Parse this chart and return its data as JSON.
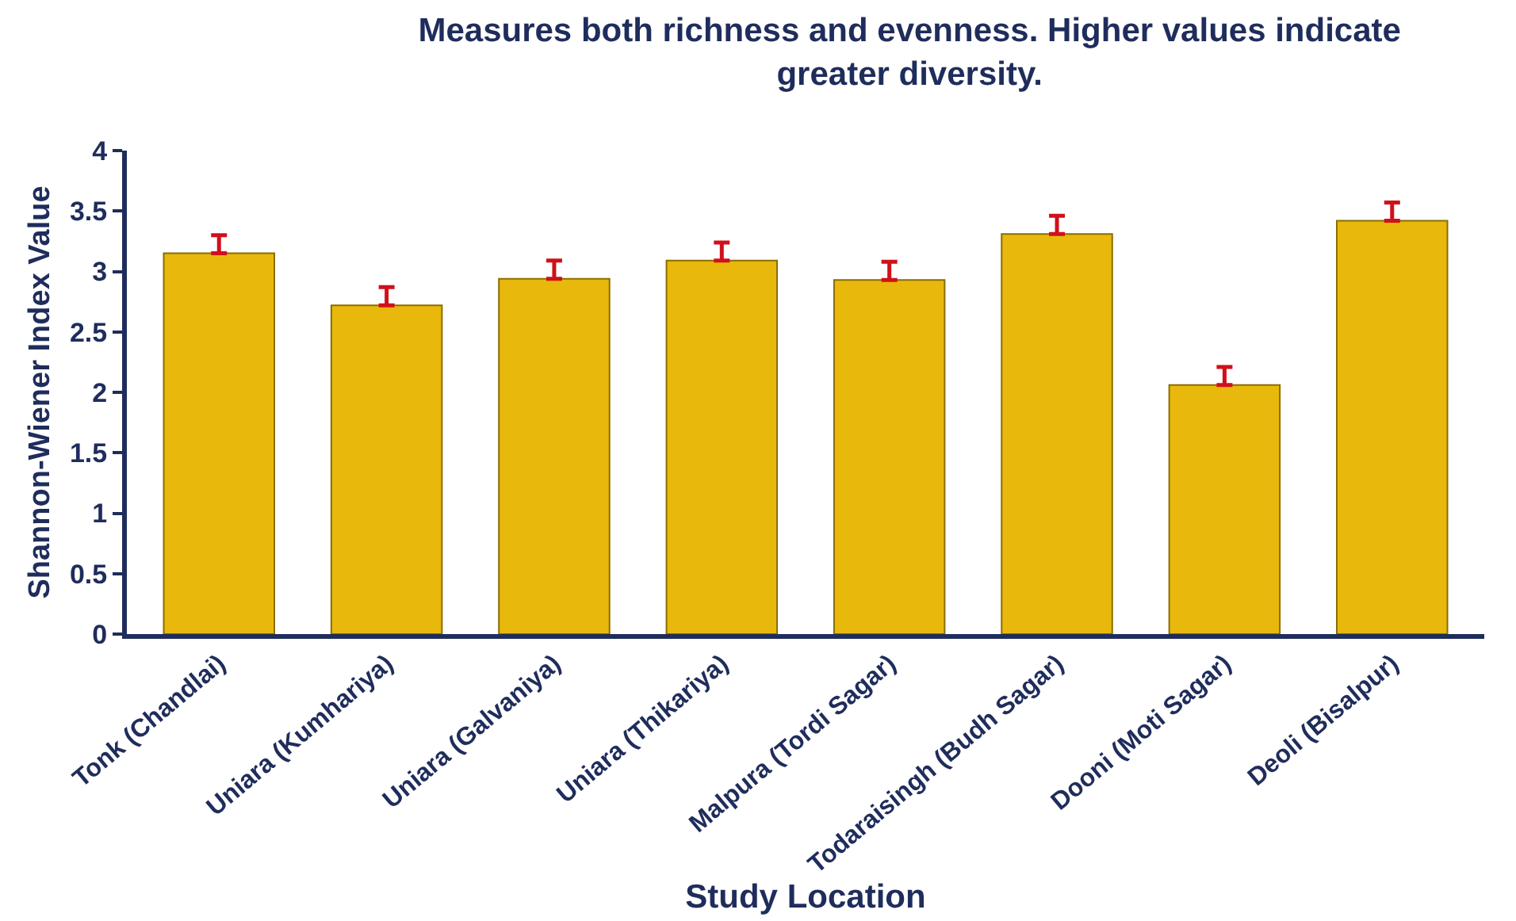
{
  "chart_data": {
    "type": "bar",
    "title": "Measures both richness and evenness. Higher values indicate greater diversity.",
    "xlabel": "Study Location",
    "ylabel": "Shannon-Wiener Index Value",
    "categories": [
      "Tonk (Chandlai)",
      "Uniara (Kumhariya)",
      "Uniara (Galvaniya)",
      "Uniara (Thikariya)",
      "Malpura (Tordi Sagar)",
      "Todaraisingh (Budh Sagar)",
      "Dooni (Moti Sagar)",
      "Deoli (Bisalpur)"
    ],
    "values": [
      3.15,
      2.72,
      2.94,
      3.09,
      2.93,
      3.31,
      2.06,
      3.42
    ],
    "errors": [
      [
        3.15,
        3.3
      ],
      [
        2.72,
        2.87
      ],
      [
        2.94,
        3.09
      ],
      [
        3.09,
        3.24
      ],
      [
        2.93,
        3.08
      ],
      [
        3.31,
        3.46
      ],
      [
        2.06,
        2.21
      ],
      [
        3.42,
        3.57
      ]
    ],
    "color": "#e8b80c",
    "ylim": [
      0,
      4
    ],
    "yticks": [
      0,
      0.5,
      1,
      1.5,
      2,
      2.5,
      3,
      3.5,
      4
    ],
    "grid": false
  }
}
